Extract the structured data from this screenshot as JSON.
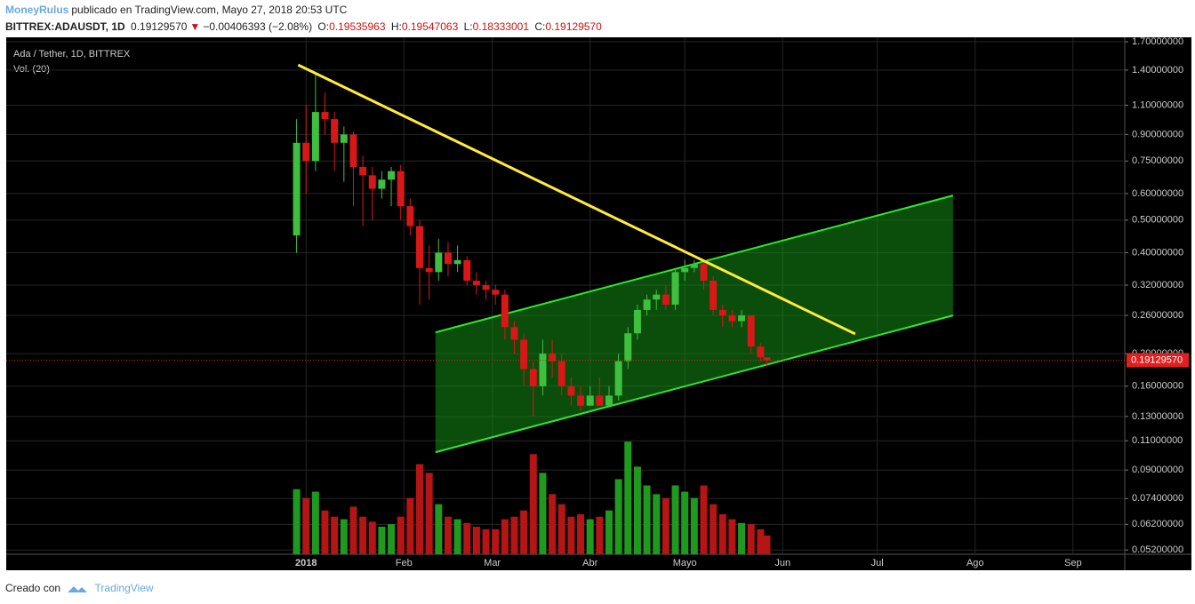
{
  "header": {
    "author": "MoneyRulus",
    "published": "publicado en TradingView.com, Mayo 27, 2018 20:53 UTC",
    "symbol": "BITTREX:ADAUSDT, 1D",
    "last": "0.19129570",
    "arrow": "▼",
    "change": "−0.00406393 (−2.08%)",
    "o_label": "O:",
    "open": "0.19535963",
    "h_label": "H:",
    "high": "0.19547063",
    "l_label": "L:",
    "low": "0.18333001",
    "c_label": "C:",
    "close": "0.19129570"
  },
  "footer": {
    "made_with": "Creado con",
    "brand": "TradingView"
  },
  "chart_data": {
    "type": "candlestick",
    "title": "Ada / Tether, 1D, BITTREX",
    "volume_label": "Vol. (20)",
    "log_scale": true,
    "grid": true,
    "up_color": "#3fbf3f",
    "down_color": "#d81818",
    "xlim": [
      -95,
      259.4
    ],
    "ylim": [
      0.0505,
      1.753
    ],
    "vlim": [
      0,
      110
    ],
    "xticks": [
      {
        "value": 0,
        "label": "2018"
      },
      {
        "value": 31,
        "label": "Feb"
      },
      {
        "value": 59,
        "label": "Mar"
      },
      {
        "value": 90,
        "label": "Abr"
      },
      {
        "value": 120,
        "label": "Mayo"
      },
      {
        "value": 151,
        "label": "Jun"
      },
      {
        "value": 181,
        "label": "Jul"
      },
      {
        "value": 212,
        "label": "Ago"
      },
      {
        "value": 243,
        "label": "Sep"
      }
    ],
    "yticks": [
      {
        "value": 1.7,
        "label": "1.70000000"
      },
      {
        "value": 1.4,
        "label": "1.40000000"
      },
      {
        "value": 1.1,
        "label": "1.10000000"
      },
      {
        "value": 0.9,
        "label": "0.90000000"
      },
      {
        "value": 0.75,
        "label": "0.75000000"
      },
      {
        "value": 0.6,
        "label": "0.60000000"
      },
      {
        "value": 0.5,
        "label": "0.50000000"
      },
      {
        "value": 0.4,
        "label": "0.40000000"
      },
      {
        "value": 0.32,
        "label": "0.32000000"
      },
      {
        "value": 0.26,
        "label": "0.26000000"
      },
      {
        "value": 0.2,
        "label": "0.20000000"
      },
      {
        "value": 0.16,
        "label": "0.16000000"
      },
      {
        "value": 0.13,
        "label": "0.13000000"
      },
      {
        "value": 0.11,
        "label": "0.11000000"
      },
      {
        "value": 0.09,
        "label": "0.09000000"
      },
      {
        "value": 0.074,
        "label": "0.07400000"
      },
      {
        "value": 0.062,
        "label": "0.06200000"
      },
      {
        "value": 0.052,
        "label": "0.05200000"
      }
    ],
    "price_line": {
      "value": 0.1912957,
      "label": "0.19129570",
      "color": "#e02020"
    },
    "x": [
      -3,
      0,
      3,
      6,
      9,
      12,
      15,
      18,
      21,
      24,
      27,
      30,
      33,
      36,
      39,
      42,
      45,
      48,
      51,
      54,
      57,
      60,
      63,
      66,
      69,
      72,
      75,
      78,
      81,
      84,
      87,
      90,
      93,
      96,
      99,
      102,
      105,
      108,
      111,
      114,
      117,
      120,
      123,
      126,
      129,
      132,
      135,
      138,
      141,
      144,
      146
    ],
    "open": [
      0.45,
      0.85,
      0.75,
      1.05,
      1.0,
      0.85,
      0.9,
      0.72,
      0.68,
      0.62,
      0.66,
      0.7,
      0.55,
      0.48,
      0.36,
      0.35,
      0.4,
      0.37,
      0.38,
      0.33,
      0.32,
      0.31,
      0.3,
      0.24,
      0.22,
      0.18,
      0.16,
      0.2,
      0.19,
      0.16,
      0.15,
      0.14,
      0.15,
      0.14,
      0.15,
      0.19,
      0.23,
      0.27,
      0.29,
      0.3,
      0.28,
      0.35,
      0.36,
      0.37,
      0.33,
      0.27,
      0.26,
      0.25,
      0.26,
      0.21,
      0.195
    ],
    "high": [
      1.0,
      1.1,
      1.37,
      1.2,
      1.05,
      0.95,
      0.92,
      0.78,
      0.72,
      0.7,
      0.72,
      0.73,
      0.58,
      0.5,
      0.42,
      0.44,
      0.43,
      0.42,
      0.39,
      0.35,
      0.33,
      0.32,
      0.31,
      0.25,
      0.23,
      0.19,
      0.22,
      0.22,
      0.2,
      0.17,
      0.16,
      0.16,
      0.17,
      0.16,
      0.2,
      0.24,
      0.28,
      0.3,
      0.31,
      0.32,
      0.36,
      0.38,
      0.38,
      0.38,
      0.34,
      0.28,
      0.27,
      0.27,
      0.26,
      0.215,
      0.195
    ],
    "low": [
      0.4,
      0.6,
      0.7,
      0.9,
      0.7,
      0.65,
      0.55,
      0.48,
      0.5,
      0.58,
      0.55,
      0.5,
      0.45,
      0.28,
      0.29,
      0.33,
      0.34,
      0.35,
      0.32,
      0.3,
      0.29,
      0.28,
      0.22,
      0.2,
      0.16,
      0.13,
      0.15,
      0.17,
      0.15,
      0.14,
      0.135,
      0.14,
      0.14,
      0.14,
      0.145,
      0.18,
      0.22,
      0.26,
      0.27,
      0.27,
      0.27,
      0.33,
      0.35,
      0.31,
      0.26,
      0.24,
      0.24,
      0.24,
      0.2,
      0.19,
      0.183
    ],
    "close": [
      0.85,
      0.75,
      1.05,
      1.0,
      0.85,
      0.9,
      0.72,
      0.68,
      0.62,
      0.66,
      0.7,
      0.55,
      0.48,
      0.36,
      0.35,
      0.4,
      0.37,
      0.38,
      0.33,
      0.32,
      0.31,
      0.3,
      0.24,
      0.22,
      0.18,
      0.16,
      0.2,
      0.19,
      0.16,
      0.15,
      0.14,
      0.15,
      0.14,
      0.15,
      0.19,
      0.23,
      0.27,
      0.29,
      0.3,
      0.28,
      0.35,
      0.36,
      0.37,
      0.33,
      0.27,
      0.26,
      0.25,
      0.26,
      0.21,
      0.195,
      0.191
    ],
    "volume": [
      52,
      45,
      50,
      35,
      30,
      28,
      38,
      30,
      26,
      22,
      24,
      30,
      45,
      72,
      65,
      40,
      30,
      28,
      25,
      22,
      20,
      20,
      28,
      30,
      35,
      80,
      65,
      48,
      40,
      30,
      32,
      28,
      30,
      35,
      60,
      90,
      70,
      55,
      48,
      45,
      55,
      50,
      45,
      55,
      40,
      32,
      28,
      25,
      24,
      20,
      15
    ],
    "drawings": [
      {
        "name": "trendline",
        "color": "#ffeb3b",
        "points": [
          [
            -2.5,
            1.45
          ],
          [
            174,
            0.229
          ]
        ]
      },
      {
        "name": "channel",
        "color": "#2ee82e",
        "fill": "rgba(20,140,20,0.55)",
        "upper": [
          [
            41,
            0.2315
          ],
          [
            205,
            0.592
          ]
        ],
        "lower": [
          [
            41,
            0.1017
          ],
          [
            205,
            0.26
          ]
        ]
      }
    ]
  }
}
